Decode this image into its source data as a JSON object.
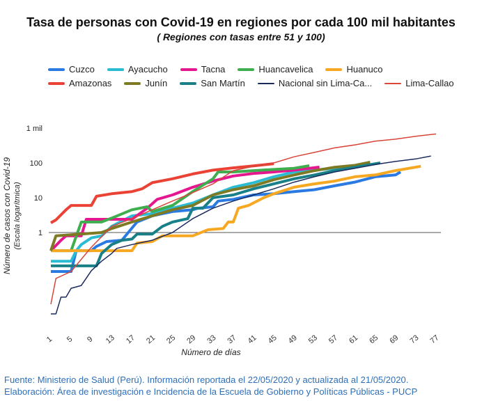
{
  "chart_data": {
    "type": "line",
    "title": "Tasa de personas con Covid-19 en regiones por cada 100 mil habitantes",
    "subtitle": "( Regiones con tasas entre 51 y 100)",
    "xlabel": "Número de días",
    "ylabel": "Número de casos con Covid-19",
    "ylabel2": "(Escala logarítmica)",
    "yscale": "log",
    "ylim": [
      0.004,
      1000
    ],
    "xlim": [
      1,
      77
    ],
    "yticks": [
      {
        "value": 1000,
        "label": "1 mil"
      },
      {
        "value": 100,
        "label": "100"
      },
      {
        "value": 10,
        "label": "10"
      },
      {
        "value": 1,
        "label": "1"
      }
    ],
    "xticks": [
      "1",
      "5",
      "9",
      "13",
      "17",
      "21",
      "25",
      "29",
      "33",
      "37",
      "41",
      "45",
      "49",
      "53",
      "57",
      "61",
      "65",
      "69",
      "73",
      "77"
    ],
    "grid": false,
    "legend": "top",
    "series": [
      {
        "name": "Cuzco",
        "color": "#2a7ae2",
        "width": 4,
        "points": [
          [
            1,
            0.076
          ],
          [
            5,
            0.076
          ],
          [
            6,
            0.3
          ],
          [
            9,
            0.3
          ],
          [
            10,
            0.4
          ],
          [
            12,
            0.55
          ],
          [
            15,
            0.6
          ],
          [
            18,
            2
          ],
          [
            21,
            3
          ],
          [
            25,
            4
          ],
          [
            29,
            4.5
          ],
          [
            30,
            5
          ],
          [
            33,
            5.5
          ],
          [
            34,
            8
          ],
          [
            37,
            9
          ],
          [
            41,
            12
          ],
          [
            45,
            13
          ],
          [
            49,
            15
          ],
          [
            53,
            17
          ],
          [
            57,
            22
          ],
          [
            61,
            28
          ],
          [
            65,
            40
          ],
          [
            69,
            45
          ],
          [
            70,
            55
          ]
        ]
      },
      {
        "name": "Ayacucho",
        "color": "#2bbcd4",
        "width": 4,
        "points": [
          [
            1,
            0.15
          ],
          [
            5,
            0.15
          ],
          [
            6,
            0.3
          ],
          [
            7,
            0.45
          ],
          [
            9,
            0.7
          ],
          [
            11,
            0.8
          ],
          [
            13,
            1.5
          ],
          [
            17,
            3
          ],
          [
            21,
            3.5
          ],
          [
            25,
            5
          ],
          [
            29,
            7
          ],
          [
            33,
            12
          ],
          [
            37,
            20
          ],
          [
            41,
            27
          ],
          [
            45,
            40
          ],
          [
            49,
            55
          ],
          [
            53,
            62
          ],
          [
            57,
            70
          ],
          [
            62,
            80
          ]
        ]
      },
      {
        "name": "Tacna",
        "color": "#e5178f",
        "width": 4,
        "points": [
          [
            1,
            0.3
          ],
          [
            3,
            0.6
          ],
          [
            4,
            0.8
          ],
          [
            7,
            0.8
          ],
          [
            8,
            2.4
          ],
          [
            17,
            2.4
          ],
          [
            20,
            5
          ],
          [
            22,
            9
          ],
          [
            25,
            12
          ],
          [
            29,
            20
          ],
          [
            33,
            30
          ],
          [
            37,
            42
          ],
          [
            41,
            50
          ],
          [
            45,
            55
          ],
          [
            49,
            62
          ],
          [
            54,
            76
          ]
        ]
      },
      {
        "name": "Huancavelica",
        "color": "#3fae4f",
        "width": 4,
        "points": [
          [
            1,
            0.3
          ],
          [
            5,
            0.3
          ],
          [
            7,
            2
          ],
          [
            11,
            2
          ],
          [
            13,
            2.6
          ],
          [
            17,
            4.5
          ],
          [
            20,
            5.5
          ],
          [
            21,
            4
          ],
          [
            25,
            6
          ],
          [
            29,
            15
          ],
          [
            33,
            35
          ],
          [
            34,
            55
          ],
          [
            37,
            55
          ],
          [
            41,
            60
          ],
          [
            45,
            65
          ],
          [
            49,
            70
          ],
          [
            52,
            83
          ]
        ]
      },
      {
        "name": "Huanuco",
        "color": "#f7a823",
        "width": 4,
        "points": [
          [
            1,
            0.3
          ],
          [
            17,
            0.3
          ],
          [
            18,
            0.5
          ],
          [
            21,
            0.55
          ],
          [
            23,
            0.8
          ],
          [
            29,
            0.8
          ],
          [
            32,
            1.2
          ],
          [
            35,
            1.3
          ],
          [
            36,
            2
          ],
          [
            37,
            2
          ],
          [
            38,
            5
          ],
          [
            40,
            6
          ],
          [
            43,
            10
          ],
          [
            45,
            13
          ],
          [
            49,
            20
          ],
          [
            53,
            25
          ],
          [
            57,
            30
          ],
          [
            61,
            40
          ],
          [
            65,
            45
          ],
          [
            69,
            60
          ],
          [
            74,
            80
          ]
        ]
      },
      {
        "name": "Amazonas",
        "color": "#ea4335",
        "width": 4,
        "points": [
          [
            1,
            1.9
          ],
          [
            2,
            2.3
          ],
          [
            4,
            4.5
          ],
          [
            5,
            6
          ],
          [
            9,
            6
          ],
          [
            10,
            11
          ],
          [
            13,
            13
          ],
          [
            17,
            15
          ],
          [
            19,
            18
          ],
          [
            21,
            27
          ],
          [
            25,
            35
          ],
          [
            29,
            48
          ],
          [
            33,
            62
          ],
          [
            37,
            72
          ],
          [
            41,
            82
          ],
          [
            45,
            95
          ]
        ]
      },
      {
        "name": "Junín",
        "color": "#7d7a23",
        "width": 4,
        "points": [
          [
            1,
            0.3
          ],
          [
            2,
            0.8
          ],
          [
            9,
            0.95
          ],
          [
            11,
            1
          ],
          [
            13,
            1.3
          ],
          [
            17,
            2
          ],
          [
            21,
            3
          ],
          [
            25,
            4.5
          ],
          [
            29,
            6
          ],
          [
            33,
            12
          ],
          [
            37,
            17
          ],
          [
            41,
            22
          ],
          [
            45,
            33
          ],
          [
            49,
            45
          ],
          [
            53,
            60
          ],
          [
            57,
            75
          ],
          [
            61,
            85
          ],
          [
            64,
            105
          ]
        ]
      },
      {
        "name": "San Martín",
        "color": "#1a8088",
        "width": 4,
        "points": [
          [
            1,
            0.11
          ],
          [
            10,
            0.11
          ],
          [
            11,
            0.25
          ],
          [
            13,
            0.45
          ],
          [
            15,
            0.6
          ],
          [
            17,
            0.65
          ],
          [
            18,
            0.9
          ],
          [
            21,
            0.9
          ],
          [
            23,
            1.5
          ],
          [
            25,
            2
          ],
          [
            28,
            2.5
          ],
          [
            29,
            5
          ],
          [
            31,
            5
          ],
          [
            33,
            10
          ],
          [
            37,
            12
          ],
          [
            41,
            18
          ],
          [
            45,
            25
          ],
          [
            49,
            35
          ],
          [
            53,
            45
          ],
          [
            57,
            60
          ],
          [
            61,
            75
          ],
          [
            66,
            100
          ]
        ]
      },
      {
        "name": "Nacional sin Lima-Ca...",
        "color": "#1b2a5e",
        "width": 1.5,
        "points": [
          [
            1,
            0.0046
          ],
          [
            2,
            0.0046
          ],
          [
            3,
            0.014
          ],
          [
            4,
            0.014
          ],
          [
            5,
            0.025
          ],
          [
            7,
            0.03
          ],
          [
            9,
            0.08
          ],
          [
            11,
            0.15
          ],
          [
            13,
            0.25
          ],
          [
            14,
            0.35
          ],
          [
            17,
            0.45
          ],
          [
            21,
            0.6
          ],
          [
            25,
            1
          ],
          [
            29,
            2.5
          ],
          [
            33,
            5
          ],
          [
            37,
            8
          ],
          [
            41,
            12
          ],
          [
            45,
            18
          ],
          [
            49,
            28
          ],
          [
            53,
            40
          ],
          [
            57,
            55
          ],
          [
            61,
            70
          ],
          [
            65,
            90
          ],
          [
            69,
            110
          ],
          [
            73,
            130
          ],
          [
            76,
            158
          ]
        ]
      },
      {
        "name": "Lima-Callao",
        "color": "#d9443a",
        "width": 1.5,
        "points": [
          [
            1,
            0.0087
          ],
          [
            2,
            0.048
          ],
          [
            5,
            0.076
          ],
          [
            9,
            0.38
          ],
          [
            13,
            1.5
          ],
          [
            17,
            2.5
          ],
          [
            21,
            4.5
          ],
          [
            25,
            8
          ],
          [
            29,
            14
          ],
          [
            33,
            25
          ],
          [
            37,
            60
          ],
          [
            41,
            80
          ],
          [
            45,
            100
          ],
          [
            49,
            150
          ],
          [
            53,
            200
          ],
          [
            57,
            270
          ],
          [
            61,
            330
          ],
          [
            65,
            420
          ],
          [
            69,
            480
          ],
          [
            73,
            580
          ],
          [
            77,
            680
          ]
        ]
      }
    ]
  },
  "footer": {
    "line1": "Fuente: Ministerio de Salud (Perú). Información reportada el 22/05/2020 y actualizada al 21/05/2020.",
    "line2": "Elaboración: Área de investigación e Incidencia de la Escuela de Gobierno y Políticas Públicas - PUCP"
  }
}
